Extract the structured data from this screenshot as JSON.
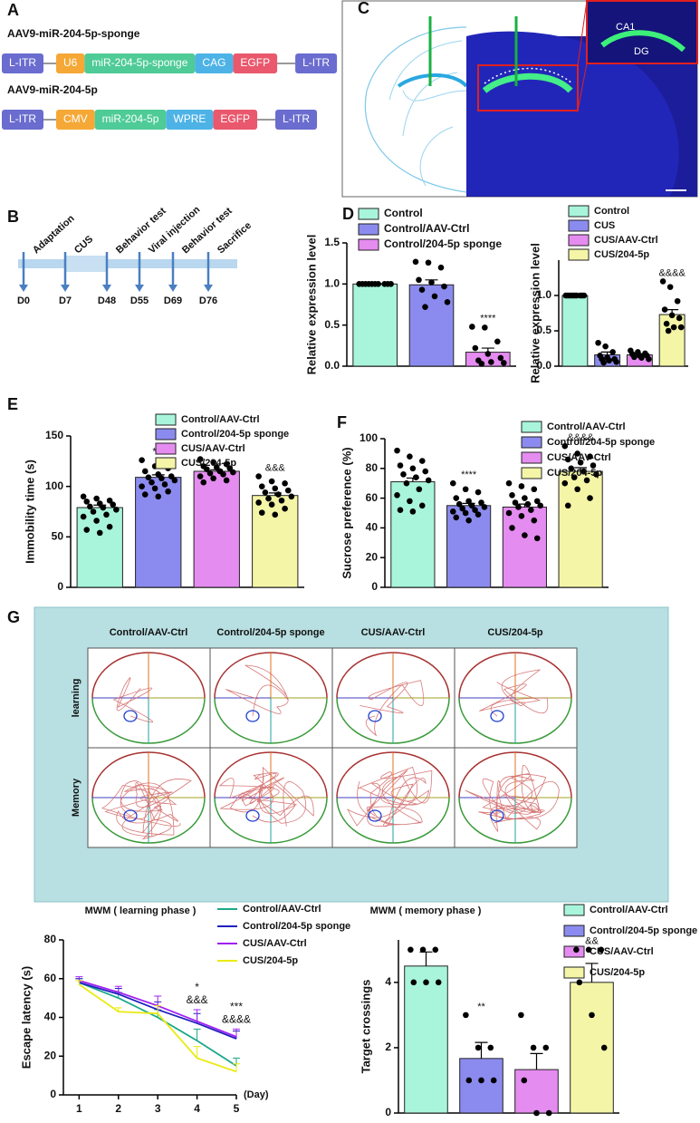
{
  "panel_labels": [
    "A",
    "B",
    "C",
    "D",
    "E",
    "F",
    "G"
  ],
  "constructs": [
    {
      "title": "AAV9-miR-204-5p-sponge",
      "elements": [
        {
          "label": "L-ITR",
          "color": "#6a6ccf"
        },
        {
          "label": "U6",
          "color": "#f5a836"
        },
        {
          "label": "miR-204-5p-sponge",
          "color": "#4ecb96"
        },
        {
          "label": "CAG",
          "color": "#4db3e6"
        },
        {
          "label": "EGFP",
          "color": "#e9586c"
        },
        {
          "label": "L-ITR",
          "color": "#6a6ccf"
        }
      ]
    },
    {
      "title": "AAV9-miR-204-5p",
      "elements": [
        {
          "label": "L-ITR",
          "color": "#6a6ccf"
        },
        {
          "label": "CMV",
          "color": "#f5a836"
        },
        {
          "label": "miR-204-5p",
          "color": "#4ecb96"
        },
        {
          "label": "WPRE",
          "color": "#4db3e6"
        },
        {
          "label": "EGFP",
          "color": "#e9586c"
        },
        {
          "label": "L-ITR",
          "color": "#6a6ccf"
        }
      ]
    }
  ],
  "timeline": {
    "events": [
      {
        "day": "D0",
        "label": "Adaptation"
      },
      {
        "day": "D7",
        "label": "CUS"
      },
      {
        "day": "D48",
        "label": "Behavior test"
      },
      {
        "day": "D55",
        "label": "Viral injection"
      },
      {
        "day": "D69",
        "label": "Behavior test"
      },
      {
        "day": "D76",
        "label": "Sacrifice"
      }
    ]
  },
  "image_c": {
    "labels": [
      "CA1",
      "DG"
    ]
  },
  "maze": {
    "columns": [
      "Control/AAV-Ctrl",
      "Control/204-5p sponge",
      "CUS/AAV-Ctrl",
      "CUS/204-5p"
    ],
    "rows": [
      "learning",
      "Memory"
    ]
  },
  "chart_data": [
    {
      "type": "bar",
      "ylabel": "Relative expression level",
      "categories": [
        "Control",
        "Control/AAV-Ctrl",
        "Control/204-5p sponge"
      ],
      "colors": [
        "#a8f5dc",
        "#8b8bef",
        "#e58cf0"
      ],
      "values": [
        1.0,
        0.99,
        0.17
      ],
      "errors": [
        0.004,
        0.06,
        0.05
      ],
      "points": [
        [
          1,
          1,
          1,
          1,
          1,
          1,
          1,
          1,
          1,
          1
        ],
        [
          1.27,
          1.26,
          1.2,
          1.05,
          1.02,
          0.97,
          0.93,
          0.85,
          0.78,
          0.72
        ],
        [
          0.48,
          0.47,
          0.3,
          0.22,
          0.15,
          0.1,
          0.07,
          0.05,
          0.04,
          0.03
        ]
      ],
      "annotations": [
        null,
        null,
        "****"
      ],
      "ylim": [
        0,
        1.5
      ],
      "yticks": [
        {
          "value": 0,
          "label": "0.0"
        },
        {
          "value": 0.5,
          "label": "0.5"
        },
        {
          "value": 1,
          "label": "1.0"
        },
        {
          "value": 1.5,
          "label": "1.5"
        }
      ]
    },
    {
      "type": "bar",
      "ylabel": "Relative expression level",
      "categories": [
        "Control",
        "CUS",
        "CUS/AAV-Ctrl",
        "CUS/204-5p"
      ],
      "colors": [
        "#a8f5dc",
        "#8b8bef",
        "#e58cf0",
        "#f4f5a6"
      ],
      "values": [
        1.0,
        0.16,
        0.16,
        0.73
      ],
      "errors": [
        0.004,
        0.04,
        0.015,
        0.07
      ],
      "points": [
        [
          1,
          1,
          1,
          1,
          1,
          1,
          1,
          1,
          1,
          1
        ],
        [
          0.33,
          0.28,
          0.2,
          0.15,
          0.12,
          0.1,
          0.1,
          0.08,
          0.06,
          0.05
        ],
        [
          0.22,
          0.2,
          0.18,
          0.17,
          0.15,
          0.15,
          0.13,
          0.12,
          0.1
        ],
        [
          1.2,
          1.12,
          0.92,
          0.8,
          0.72,
          0.68,
          0.6,
          0.55,
          0.55,
          0.5
        ]
      ],
      "annotations": [
        null,
        null,
        null,
        "&&&&"
      ],
      "ylim": [
        0,
        1.5
      ],
      "yticks": [
        {
          "value": 0,
          "label": "0.0"
        },
        {
          "value": 0.5,
          "label": "0.5"
        },
        {
          "value": 1,
          "label": "1.0"
        }
      ]
    },
    {
      "type": "bar",
      "ylabel": "Immobility time (s)",
      "categories": [
        "Control/AAV-Ctrl",
        "Control/204-5p sponge",
        "CUS/AAV-Ctrl",
        "CUS/204-5p"
      ],
      "colors": [
        "#a8f5dc",
        "#8b8bef",
        "#e58cf0",
        "#f4f5a6"
      ],
      "values": [
        79,
        109,
        115,
        91
      ],
      "errors": [
        2.5,
        2.5,
        1.5,
        2.5
      ],
      "points": [
        [
          90,
          88,
          86,
          85,
          83,
          82,
          80,
          79,
          77,
          75,
          72,
          70,
          66,
          60,
          57,
          54
        ],
        [
          126,
          120,
          118,
          115,
          112,
          110,
          109,
          108,
          106,
          104,
          102,
          100,
          98,
          95,
          92,
          90
        ],
        [
          127,
          124,
          122,
          120,
          119,
          118,
          117,
          115,
          114,
          113,
          112,
          110,
          108,
          106,
          104
        ],
        [
          110,
          105,
          103,
          100,
          98,
          96,
          94,
          92,
          90,
          88,
          86,
          84,
          82,
          78,
          74,
          72
        ]
      ],
      "annotations": [
        null,
        "***",
        null,
        "&&&"
      ],
      "ylim": [
        0,
        150
      ],
      "yticks": [
        0,
        50,
        100,
        150
      ]
    },
    {
      "type": "bar",
      "ylabel": "Sucrose preference (%)",
      "categories": [
        "Control/AAV-Ctrl",
        "Control/204-5p sponge",
        "CUS/AAV-Ctrl",
        "CUS/204-5p"
      ],
      "colors": [
        "#a8f5dc",
        "#8b8bef",
        "#e58cf0",
        "#f4f5a6"
      ],
      "values": [
        71,
        55,
        54,
        78
      ],
      "errors": [
        2.5,
        1.5,
        2,
        2.5
      ],
      "points": [
        [
          92,
          88,
          85,
          82,
          80,
          78,
          76,
          74,
          72,
          70,
          66,
          62,
          58,
          55,
          52,
          51
        ],
        [
          70,
          66,
          64,
          60,
          58,
          57,
          56,
          55,
          54,
          53,
          52,
          51,
          50,
          49,
          47,
          45
        ],
        [
          70,
          68,
          66,
          62,
          60,
          58,
          57,
          56,
          55,
          54,
          52,
          50,
          48,
          45,
          40,
          35,
          33
        ],
        [
          95,
          90,
          88,
          86,
          84,
          82,
          80,
          78,
          76,
          74,
          72,
          70,
          66,
          60,
          55
        ]
      ],
      "annotations": [
        null,
        "****",
        null,
        "&&&&"
      ],
      "ylim": [
        0,
        100
      ],
      "yticks": [
        0,
        20,
        40,
        60,
        80,
        100
      ]
    },
    {
      "type": "line",
      "title": "MWM ( learning phase )",
      "ylabel": "Escape latency (s)",
      "xlabel": "(Day)",
      "x": [
        1,
        2,
        3,
        4,
        5
      ],
      "xlim": [
        0.6,
        5
      ],
      "xticks": [
        1,
        2,
        3,
        4,
        5
      ],
      "ylim": [
        0,
        80
      ],
      "yticks": [
        0,
        20,
        40,
        60,
        80
      ],
      "series": [
        {
          "name": "Control/AAV-Ctrl",
          "color": "#1aa88a",
          "values": [
            58,
            50,
            40,
            28,
            15
          ],
          "errors": [
            2,
            3,
            4,
            6,
            4
          ]
        },
        {
          "name": "Control/204-5p sponge",
          "color": "#2020c0",
          "values": [
            58,
            52,
            44,
            37,
            29
          ],
          "errors": [
            2,
            3,
            4,
            5,
            4
          ]
        },
        {
          "name": "CUS/AAV-Ctrl",
          "color": "#a020f0",
          "values": [
            59,
            53,
            46,
            38,
            30
          ],
          "errors": [
            2,
            3,
            5,
            6,
            4
          ]
        },
        {
          "name": "CUS/204-5p",
          "color": "#eaea10",
          "values": [
            57,
            43,
            42,
            19,
            12
          ],
          "errors": [
            2,
            2,
            4,
            6,
            4
          ]
        }
      ],
      "annotations": [
        null,
        null,
        null,
        [
          "*",
          "&&&"
        ],
        [
          "***",
          "&&&&"
        ]
      ]
    },
    {
      "type": "bar",
      "title": "MWM ( memory phase )",
      "ylabel": "Target crossings",
      "categories": [
        "Control/AAV-Ctrl",
        "Control/204-5p sponge",
        "CUS/AAV-Ctrl",
        "CUS/204-5p"
      ],
      "colors": [
        "#a8f5dc",
        "#8b8bef",
        "#e58cf0",
        "#f4f5a6"
      ],
      "values": [
        4.5,
        1.67,
        1.33,
        4.0
      ],
      "errors": [
        0.43,
        0.49,
        0.49,
        0.58
      ],
      "points": [
        [
          5,
          5,
          5,
          4,
          4,
          4
        ],
        [
          3,
          2,
          2,
          1,
          1,
          1
        ],
        [
          3,
          2,
          2,
          1,
          0,
          0
        ],
        [
          5,
          5,
          5,
          4,
          3,
          2
        ]
      ],
      "annotations": [
        null,
        "**",
        null,
        "&&"
      ],
      "ylim": [
        0,
        5.3
      ],
      "yticks": [
        0,
        2,
        4
      ]
    }
  ]
}
